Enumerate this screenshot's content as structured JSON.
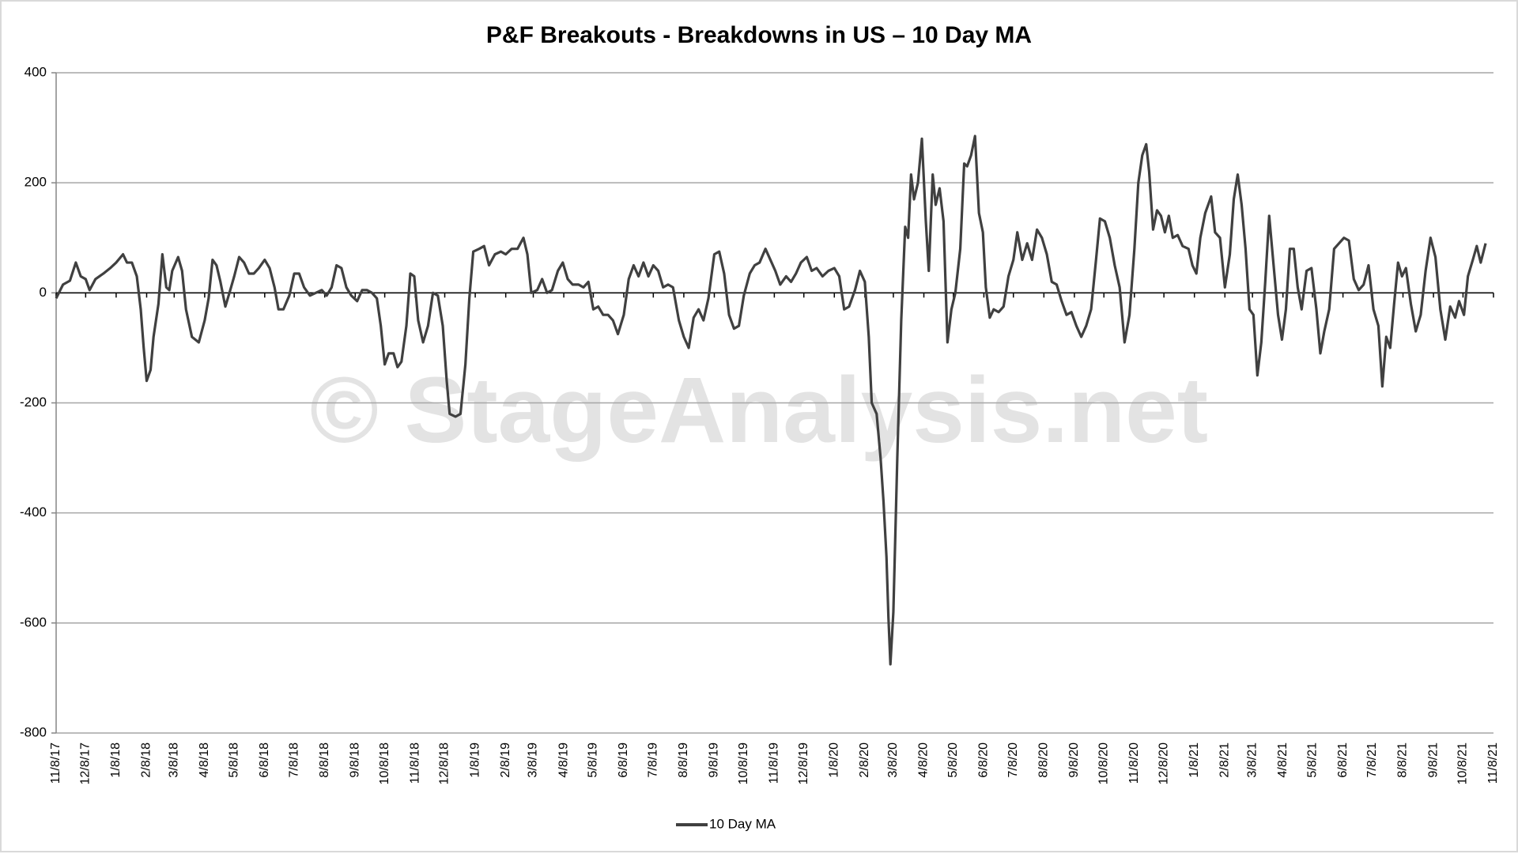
{
  "chart_data": {
    "type": "line",
    "title": "P&F Breakouts - Breakdowns in US – 10 Day MA",
    "watermark": "© StageAnalysis.net",
    "grid": true,
    "legend": "bottom",
    "ylim": [
      -800,
      400
    ],
    "yticks": [
      -800,
      -600,
      -400,
      -200,
      0,
      200,
      400
    ],
    "xlim": [
      "2017-11-08",
      "2021-11-08"
    ],
    "xticks": [
      {
        "value": "2017-11-08",
        "label": "11/8/17"
      },
      {
        "value": "2017-12-08",
        "label": "12/8/17"
      },
      {
        "value": "2018-01-08",
        "label": "1/8/18"
      },
      {
        "value": "2018-02-08",
        "label": "2/8/18"
      },
      {
        "value": "2018-03-08",
        "label": "3/8/18"
      },
      {
        "value": "2018-04-08",
        "label": "4/8/18"
      },
      {
        "value": "2018-05-08",
        "label": "5/8/18"
      },
      {
        "value": "2018-06-08",
        "label": "6/8/18"
      },
      {
        "value": "2018-07-08",
        "label": "7/8/18"
      },
      {
        "value": "2018-08-08",
        "label": "8/8/18"
      },
      {
        "value": "2018-09-08",
        "label": "9/8/18"
      },
      {
        "value": "2018-10-08",
        "label": "10/8/18"
      },
      {
        "value": "2018-11-08",
        "label": "11/8/18"
      },
      {
        "value": "2018-12-08",
        "label": "12/8/18"
      },
      {
        "value": "2019-01-08",
        "label": "1/8/19"
      },
      {
        "value": "2019-02-08",
        "label": "2/8/19"
      },
      {
        "value": "2019-03-08",
        "label": "3/8/19"
      },
      {
        "value": "2019-04-08",
        "label": "4/8/19"
      },
      {
        "value": "2019-05-08",
        "label": "5/8/19"
      },
      {
        "value": "2019-06-08",
        "label": "6/8/19"
      },
      {
        "value": "2019-07-08",
        "label": "7/8/19"
      },
      {
        "value": "2019-08-08",
        "label": "8/8/19"
      },
      {
        "value": "2019-09-08",
        "label": "9/8/19"
      },
      {
        "value": "2019-10-08",
        "label": "10/8/19"
      },
      {
        "value": "2019-11-08",
        "label": "11/8/19"
      },
      {
        "value": "2019-12-08",
        "label": "12/8/19"
      },
      {
        "value": "2020-01-08",
        "label": "1/8/20"
      },
      {
        "value": "2020-02-08",
        "label": "2/8/20"
      },
      {
        "value": "2020-03-08",
        "label": "3/8/20"
      },
      {
        "value": "2020-04-08",
        "label": "4/8/20"
      },
      {
        "value": "2020-05-08",
        "label": "5/8/20"
      },
      {
        "value": "2020-06-08",
        "label": "6/8/20"
      },
      {
        "value": "2020-07-08",
        "label": "7/8/20"
      },
      {
        "value": "2020-08-08",
        "label": "8/8/20"
      },
      {
        "value": "2020-09-08",
        "label": "9/8/20"
      },
      {
        "value": "2020-10-08",
        "label": "10/8/20"
      },
      {
        "value": "2020-11-08",
        "label": "11/8/20"
      },
      {
        "value": "2020-12-08",
        "label": "12/8/20"
      },
      {
        "value": "2021-01-08",
        "label": "1/8/21"
      },
      {
        "value": "2021-02-08",
        "label": "2/8/21"
      },
      {
        "value": "2021-03-08",
        "label": "3/8/21"
      },
      {
        "value": "2021-04-08",
        "label": "4/8/21"
      },
      {
        "value": "2021-05-08",
        "label": "5/8/21"
      },
      {
        "value": "2021-06-08",
        "label": "6/8/21"
      },
      {
        "value": "2021-07-08",
        "label": "7/8/21"
      },
      {
        "value": "2021-08-08",
        "label": "8/8/21"
      },
      {
        "value": "2021-09-08",
        "label": "9/8/21"
      },
      {
        "value": "2021-10-08",
        "label": "10/8/21"
      },
      {
        "value": "2021-11-08",
        "label": "11/8/21"
      }
    ],
    "x": [
      "2017-11-08",
      "2017-11-15",
      "2017-11-22",
      "2017-11-28",
      "2017-12-03",
      "2017-12-08",
      "2017-12-12",
      "2017-12-18",
      "2017-12-26",
      "2018-01-02",
      "2018-01-08",
      "2018-01-15",
      "2018-01-19",
      "2018-01-24",
      "2018-01-29",
      "2018-02-02",
      "2018-02-05",
      "2018-02-08",
      "2018-02-12",
      "2018-02-15",
      "2018-02-20",
      "2018-02-24",
      "2018-02-28",
      "2018-03-03",
      "2018-03-06",
      "2018-03-12",
      "2018-03-16",
      "2018-03-20",
      "2018-03-26",
      "2018-04-02",
      "2018-04-08",
      "2018-04-12",
      "2018-04-16",
      "2018-04-20",
      "2018-04-24",
      "2018-04-29",
      "2018-05-04",
      "2018-05-08",
      "2018-05-13",
      "2018-05-18",
      "2018-05-23",
      "2018-05-28",
      "2018-06-02",
      "2018-06-08",
      "2018-06-13",
      "2018-06-18",
      "2018-06-22",
      "2018-06-27",
      "2018-07-03",
      "2018-07-08",
      "2018-07-13",
      "2018-07-18",
      "2018-07-24",
      "2018-07-30",
      "2018-08-05",
      "2018-08-10",
      "2018-08-15",
      "2018-08-20",
      "2018-08-25",
      "2018-08-30",
      "2018-09-04",
      "2018-09-10",
      "2018-09-15",
      "2018-09-20",
      "2018-09-25",
      "2018-09-30",
      "2018-10-04",
      "2018-10-08",
      "2018-10-12",
      "2018-10-17",
      "2018-10-21",
      "2018-10-25",
      "2018-10-30",
      "2018-11-03",
      "2018-11-07",
      "2018-11-11",
      "2018-11-16",
      "2018-11-21",
      "2018-11-26",
      "2018-12-01",
      "2018-12-06",
      "2018-12-10",
      "2018-12-13",
      "2018-12-19",
      "2018-12-24",
      "2018-12-29",
      "2019-01-02",
      "2019-01-06",
      "2019-01-12",
      "2019-01-17",
      "2019-01-22",
      "2019-01-28",
      "2019-02-03",
      "2019-02-08",
      "2019-02-14",
      "2019-02-20",
      "2019-02-26",
      "2019-03-02",
      "2019-03-06",
      "2019-03-12",
      "2019-03-17",
      "2019-03-22",
      "2019-03-27",
      "2019-04-02",
      "2019-04-07",
      "2019-04-12",
      "2019-04-17",
      "2019-04-23",
      "2019-04-28",
      "2019-05-03",
      "2019-05-08",
      "2019-05-13",
      "2019-05-18",
      "2019-05-23",
      "2019-05-28",
      "2019-06-02",
      "2019-06-08",
      "2019-06-13",
      "2019-06-18",
      "2019-06-23",
      "2019-06-28",
      "2019-07-03",
      "2019-07-08",
      "2019-07-13",
      "2019-07-18",
      "2019-07-23",
      "2019-07-28",
      "2019-08-03",
      "2019-08-08",
      "2019-08-13",
      "2019-08-18",
      "2019-08-23",
      "2019-08-28",
      "2019-09-02",
      "2019-09-08",
      "2019-09-13",
      "2019-09-18",
      "2019-09-23",
      "2019-09-28",
      "2019-10-03",
      "2019-10-08",
      "2019-10-14",
      "2019-10-19",
      "2019-10-24",
      "2019-10-30",
      "2019-11-04",
      "2019-11-09",
      "2019-11-14",
      "2019-11-20",
      "2019-11-25",
      "2019-11-30",
      "2019-12-05",
      "2019-12-11",
      "2019-12-16",
      "2019-12-21",
      "2019-12-27",
      "2020-01-02",
      "2020-01-08",
      "2020-01-13",
      "2020-01-18",
      "2020-01-23",
      "2020-01-29",
      "2020-02-03",
      "2020-02-08",
      "2020-02-12",
      "2020-02-15",
      "2020-02-20",
      "2020-02-24",
      "2020-02-27",
      "2020-03-01",
      "2020-03-03",
      "2020-03-05",
      "2020-03-08",
      "2020-03-12",
      "2020-03-16",
      "2020-03-20",
      "2020-03-23",
      "2020-03-26",
      "2020-03-29",
      "2020-04-02",
      "2020-04-06",
      "2020-04-10",
      "2020-04-13",
      "2020-04-17",
      "2020-04-20",
      "2020-04-24",
      "2020-04-28",
      "2020-05-02",
      "2020-05-06",
      "2020-05-10",
      "2020-05-15",
      "2020-05-19",
      "2020-05-22",
      "2020-05-26",
      "2020-05-30",
      "2020-06-03",
      "2020-06-07",
      "2020-06-10",
      "2020-06-14",
      "2020-06-18",
      "2020-06-23",
      "2020-06-28",
      "2020-07-03",
      "2020-07-08",
      "2020-07-12",
      "2020-07-17",
      "2020-07-22",
      "2020-07-27",
      "2020-08-01",
      "2020-08-06",
      "2020-08-11",
      "2020-08-16",
      "2020-08-21",
      "2020-08-26",
      "2020-08-31",
      "2020-09-05",
      "2020-09-10",
      "2020-09-15",
      "2020-09-20",
      "2020-09-25",
      "2020-09-30",
      "2020-10-04",
      "2020-10-09",
      "2020-10-14",
      "2020-10-19",
      "2020-10-24",
      "2020-10-29",
      "2020-11-03",
      "2020-11-08",
      "2020-11-12",
      "2020-11-16",
      "2020-11-20",
      "2020-11-23",
      "2020-11-27",
      "2020-12-01",
      "2020-12-05",
      "2020-12-09",
      "2020-12-13",
      "2020-12-17",
      "2020-12-22",
      "2020-12-27",
      "2021-01-02",
      "2021-01-06",
      "2021-01-10",
      "2021-01-14",
      "2021-01-19",
      "2021-01-25",
      "2021-01-29",
      "2021-02-03",
      "2021-02-08",
      "2021-02-13",
      "2021-02-17",
      "2021-02-21",
      "2021-02-25",
      "2021-03-01",
      "2021-03-05",
      "2021-03-09",
      "2021-03-13",
      "2021-03-17",
      "2021-03-21",
      "2021-03-25",
      "2021-03-29",
      "2021-04-03",
      "2021-04-07",
      "2021-04-11",
      "2021-04-15",
      "2021-04-19",
      "2021-04-23",
      "2021-04-27",
      "2021-05-02",
      "2021-05-07",
      "2021-05-12",
      "2021-05-16",
      "2021-05-20",
      "2021-05-25",
      "2021-05-30",
      "2021-06-04",
      "2021-06-09",
      "2021-06-14",
      "2021-06-19",
      "2021-06-24",
      "2021-06-29",
      "2021-07-04",
      "2021-07-09",
      "2021-07-14",
      "2021-07-18",
      "2021-07-22",
      "2021-07-26",
      "2021-07-30",
      "2021-08-03",
      "2021-08-07",
      "2021-08-11",
      "2021-08-16",
      "2021-08-21",
      "2021-08-26",
      "2021-08-31",
      "2021-09-05",
      "2021-09-10",
      "2021-09-15",
      "2021-09-20",
      "2021-09-25",
      "2021-09-30",
      "2021-10-04",
      "2021-10-09",
      "2021-10-13",
      "2021-10-18",
      "2021-10-22",
      "2021-10-26",
      "2021-10-31"
    ],
    "series": [
      {
        "name": "10 Day MA",
        "color": "#404040",
        "values": [
          -10,
          15,
          22,
          55,
          30,
          25,
          5,
          25,
          35,
          45,
          55,
          70,
          55,
          55,
          30,
          -30,
          -100,
          -160,
          -140,
          -80,
          -20,
          70,
          10,
          5,
          40,
          65,
          40,
          -30,
          -80,
          -90,
          -50,
          -10,
          60,
          50,
          20,
          -25,
          5,
          30,
          65,
          55,
          35,
          35,
          45,
          60,
          45,
          10,
          -30,
          -30,
          -5,
          35,
          35,
          10,
          -5,
          0,
          5,
          -5,
          10,
          50,
          45,
          10,
          -5,
          -15,
          5,
          5,
          0,
          -10,
          -60,
          -130,
          -110,
          -110,
          -135,
          -125,
          -60,
          35,
          30,
          -50,
          -90,
          -60,
          0,
          -5,
          -60,
          -160,
          -220,
          -225,
          -220,
          -130,
          -10,
          75,
          80,
          85,
          50,
          70,
          75,
          70,
          80,
          80,
          100,
          70,
          0,
          5,
          25,
          0,
          5,
          40,
          55,
          25,
          15,
          15,
          10,
          20,
          -30,
          -25,
          -40,
          -40,
          -50,
          -75,
          -40,
          25,
          50,
          30,
          55,
          30,
          50,
          40,
          10,
          15,
          10,
          -50,
          -80,
          -100,
          -45,
          -30,
          -50,
          -10,
          70,
          75,
          35,
          -40,
          -65,
          -60,
          -5,
          35,
          50,
          55,
          80,
          60,
          40,
          15,
          30,
          20,
          35,
          55,
          65,
          40,
          45,
          30,
          40,
          45,
          30,
          -30,
          -25,
          5,
          40,
          20,
          -80,
          -200,
          -220,
          -300,
          -380,
          -480,
          -590,
          -675,
          -580,
          -300,
          -50,
          120,
          100,
          215,
          170,
          200,
          280,
          130,
          40,
          215,
          160,
          190,
          130,
          -90,
          -30,
          0,
          80,
          235,
          230,
          250,
          285,
          145,
          110,
          10,
          -45,
          -30,
          -35,
          -25,
          30,
          60,
          110,
          60,
          90,
          60,
          115,
          100,
          70,
          20,
          15,
          -15,
          -40,
          -35,
          -60,
          -80,
          -60,
          -30,
          60,
          135,
          130,
          100,
          50,
          10,
          -90,
          -40,
          80,
          200,
          250,
          270,
          220,
          115,
          150,
          140,
          110,
          140,
          100,
          105,
          85,
          80,
          50,
          35,
          100,
          145,
          175,
          110,
          100,
          10,
          70,
          170,
          215,
          160,
          80,
          -30,
          -40,
          -150,
          -90,
          20,
          140,
          60,
          -40,
          -85,
          -30,
          80,
          80,
          10,
          -30,
          40,
          45,
          -30,
          -110,
          -70,
          -30,
          80,
          90,
          100,
          95,
          25,
          5,
          15,
          50,
          -30,
          -60,
          -170,
          -80,
          -100,
          -20,
          55,
          30,
          45,
          -20,
          -70,
          -40,
          40,
          100,
          65,
          -30,
          -85,
          -25,
          -45,
          -15,
          -40,
          30,
          60,
          85,
          55,
          90
        ]
      }
    ]
  }
}
